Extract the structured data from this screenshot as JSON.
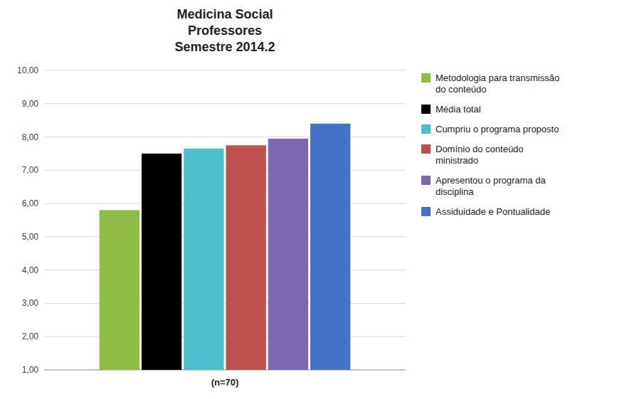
{
  "chart_data": {
    "type": "bar",
    "title": "Medicina Social\nProfessores\nSemestre 2014.2",
    "categories": [
      "(n=70)"
    ],
    "series": [
      {
        "name": "Metodologia para transmissão\ndo conteúdo",
        "color": "#8FBC45",
        "values": [
          5.8
        ]
      },
      {
        "name": "Média total",
        "color": "#000000",
        "values": [
          7.5
        ]
      },
      {
        "name": "Cumpriu o programa proposto",
        "color": "#4DBECC",
        "values": [
          7.65
        ]
      },
      {
        "name": "Domínio do conteúdo\nministrado",
        "color": "#C0504D",
        "values": [
          7.75
        ]
      },
      {
        "name": "Apresentou o programa da\ndisciplina",
        "color": "#7B68B0",
        "values": [
          7.95
        ]
      },
      {
        "name": "Assiduidade e Pontualidade",
        "color": "#4472C4",
        "values": [
          8.4
        ]
      }
    ],
    "ylim": [
      1.0,
      10.0
    ],
    "yticks": [
      {
        "value": 1.0,
        "label": "1,00"
      },
      {
        "value": 2.0,
        "label": "2,00"
      },
      {
        "value": 3.0,
        "label": "3,00"
      },
      {
        "value": 4.0,
        "label": "4,00"
      },
      {
        "value": 5.0,
        "label": "5,00"
      },
      {
        "value": 6.0,
        "label": "6,00"
      },
      {
        "value": 7.0,
        "label": "7,00"
      },
      {
        "value": 8.0,
        "label": "8,00"
      },
      {
        "value": 9.0,
        "label": "9,00"
      },
      {
        "value": 10.0,
        "label": "10,00"
      }
    ],
    "grid": true,
    "legend": "right"
  }
}
